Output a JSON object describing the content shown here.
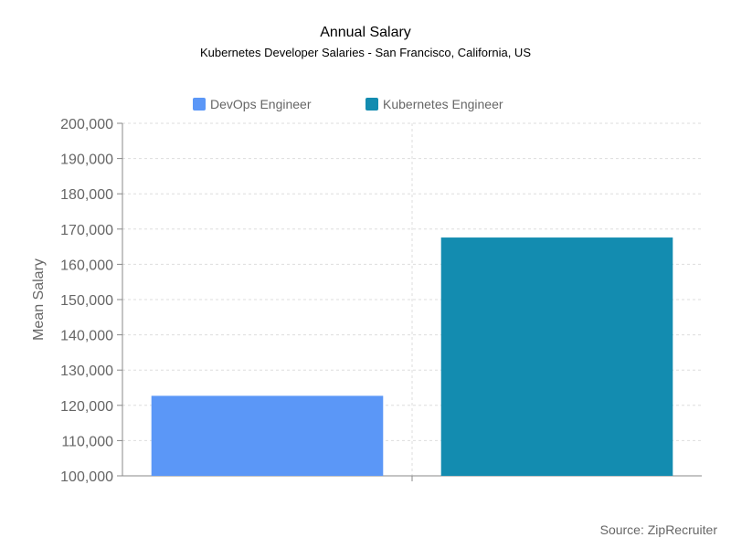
{
  "chart_data": {
    "type": "bar",
    "title": "Annual Salary",
    "subtitle": "Kubernetes Developer Salaries - San Francisco, California, US",
    "xlabel": "",
    "ylabel": "Mean Salary",
    "ylim": [
      100000,
      200000
    ],
    "ytick_step": 10000,
    "y_ticks": [
      "100,000",
      "110,000",
      "120,000",
      "130,000",
      "140,000",
      "150,000",
      "160,000",
      "170,000",
      "180,000",
      "190,000",
      "200,000"
    ],
    "grid": true,
    "legend_position": "top",
    "series": [
      {
        "name": "DevOps Engineer",
        "value": 122700,
        "color": "#5b97f7"
      },
      {
        "name": "Kubernetes Engineer",
        "value": 167600,
        "color": "#138cb0"
      }
    ],
    "source": "Source: ZipRecruiter"
  }
}
